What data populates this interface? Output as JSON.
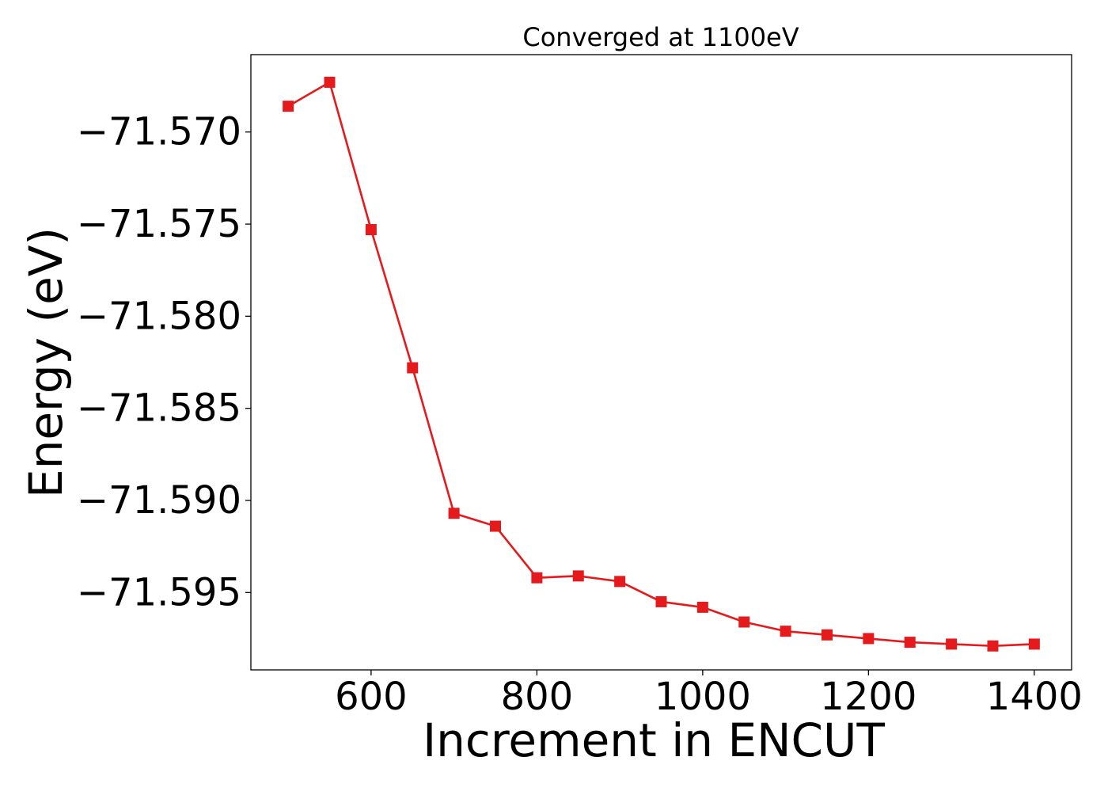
{
  "chart_data": {
    "type": "line",
    "title": "Converged at 1100eV",
    "xlabel": "Increment in ENCUT",
    "ylabel": "Energy (eV)",
    "x": [
      500,
      550,
      600,
      650,
      700,
      750,
      800,
      850,
      900,
      950,
      1000,
      1050,
      1100,
      1150,
      1200,
      1250,
      1300,
      1350,
      1400
    ],
    "series": [
      {
        "name": "",
        "color": "#e41a1c",
        "marker": "square",
        "values": [
          -71.5686,
          -71.5673,
          -71.5753,
          -71.5828,
          -71.5907,
          -71.5914,
          -71.5942,
          -71.5941,
          -71.5944,
          -71.5955,
          -71.5958,
          -71.5966,
          -71.5971,
          -71.5973,
          -71.5975,
          -71.5977,
          -71.5978,
          -71.5979,
          -71.5978
        ]
      }
    ],
    "xlim": [
      455,
      1445
    ],
    "ylim": [
      -71.5992,
      -71.5658
    ],
    "xticks": [
      600,
      800,
      1000,
      1200,
      1400
    ],
    "yticks": [
      -71.57,
      -71.575,
      -71.58,
      -71.585,
      -71.59,
      -71.595
    ],
    "xtick_labels": [
      "600",
      "800",
      "1000",
      "1200",
      "1400"
    ],
    "ytick_labels": [
      "−71.570",
      "−71.575",
      "−71.580",
      "−71.585",
      "−71.590",
      "−71.595"
    ],
    "grid": false,
    "legend": "none"
  }
}
